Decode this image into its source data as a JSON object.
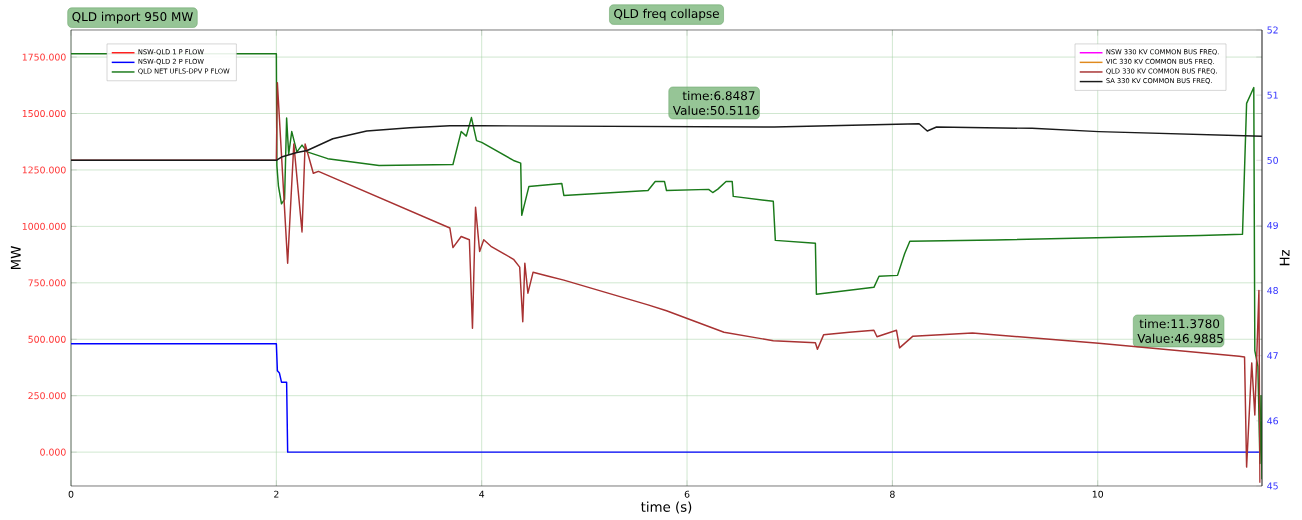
{
  "chart_data": {
    "type": "line",
    "title": "QLD freq collapse",
    "xlabel": "time (s)",
    "ylabel": "MW",
    "y2label": "Hz",
    "xlim": [
      0,
      11.6
    ],
    "xticks": [
      0,
      2,
      4,
      6,
      8,
      10
    ],
    "ylim": [
      -150,
      1870
    ],
    "yticks": [
      {
        "value": 0,
        "label": "0.000"
      },
      {
        "value": 250,
        "label": "250.000"
      },
      {
        "value": 500,
        "label": "500.000"
      },
      {
        "value": 750,
        "label": "750.000"
      },
      {
        "value": 1000,
        "label": "1000.000"
      },
      {
        "value": 1250,
        "label": "1250.000"
      },
      {
        "value": 1500,
        "label": "1500.000"
      },
      {
        "value": 1750,
        "label": "1750.000"
      }
    ],
    "y2lim": [
      45,
      52
    ],
    "y2ticks": [
      45,
      46,
      47,
      48,
      49,
      50,
      51,
      52
    ],
    "grid": true,
    "legend": "top left",
    "annotations": [
      "QLD import 950 MW",
      "time:6.8487 Value:50.5116",
      "time:11.3780 Value:46.9885"
    ],
    "series": [
      {
        "name": "NSW-QLD 1 P FLOW",
        "color": "#ff2020",
        "values": [
          null,
          null
        ]
      },
      {
        "name": "NSW-QLD 2 P FLOW",
        "color": "#0000ff",
        "x": [
          0,
          2.0,
          2.01,
          2.03,
          2.05,
          2.1,
          2.11,
          11.57
        ],
        "values": [
          480,
          480,
          360,
          350,
          310,
          310,
          0,
          0
        ]
      },
      {
        "name": "QLD NET UFLS-DPV P FLOW",
        "color": "#1a7a1a",
        "x": [
          0,
          2.0,
          2.005,
          2.02,
          2.05,
          2.08,
          2.1,
          2.12,
          2.15,
          2.2,
          2.25,
          2.3,
          2.5,
          3.0,
          3.72,
          3.8,
          3.85,
          3.9,
          3.95,
          4.0,
          4.31,
          4.38,
          4.39,
          4.46,
          4.78,
          4.8,
          5.62,
          5.69,
          5.78,
          5.8,
          6.21,
          6.25,
          6.3,
          6.38,
          6.44,
          6.45,
          6.84,
          6.86,
          7.25,
          7.26,
          7.58,
          7.82,
          7.87,
          8.05,
          8.12,
          8.17,
          9.0,
          10.0,
          11.0,
          11.41,
          11.45,
          11.52,
          11.53,
          11.56,
          11.58,
          11.59,
          11.6
        ],
        "values": [
          1765,
          1765,
          1270,
          1180,
          1100,
          1120,
          1480,
          1320,
          1420,
          1330,
          1360,
          1330,
          1300,
          1270,
          1274,
          1420,
          1400,
          1482,
          1380,
          1372,
          1292,
          1280,
          1049,
          1177,
          1190,
          1137,
          1159,
          1199,
          1199,
          1159,
          1164,
          1150,
          1165,
          1199,
          1199,
          1133,
          1111,
          938,
          925,
          699,
          717,
          730,
          779,
          783,
          880,
          934,
          940,
          950,
          960,
          965,
          1545,
          1615,
          450,
          380,
          -50,
          250,
          -120
        ]
      },
      {
        "name": "NSW 330 KV COMMON BUS FREQ.",
        "color": "#ff00ff",
        "axis": "y2",
        "values": [
          null,
          null
        ]
      },
      {
        "name": "VIC 330 KV COMMON BUS FREQ.",
        "color": "#e08a1e",
        "axis": "y2",
        "values": [
          null,
          null
        ]
      },
      {
        "name": "QLD 330 KV COMMON BUS FREQ.",
        "color": "#a83232",
        "axis": "y2",
        "x": [
          0,
          2.0,
          2.01,
          2.11,
          2.17,
          2.25,
          2.28,
          2.36,
          2.41,
          3.69,
          3.72,
          3.8,
          3.88,
          3.91,
          3.94,
          3.98,
          4.02,
          4.09,
          4.31,
          4.37,
          4.4,
          4.42,
          4.45,
          4.5,
          4.65,
          4.8,
          5.62,
          5.8,
          6.36,
          6.84,
          7.25,
          7.27,
          7.33,
          7.58,
          7.82,
          7.85,
          8.04,
          8.07,
          8.2,
          8.78,
          10.01,
          11.378,
          11.43,
          11.45,
          11.5,
          11.53,
          11.57,
          11.58
        ],
        "values": [
          50.0,
          50.0,
          51.19,
          48.42,
          50.25,
          48.9,
          50.25,
          49.8,
          49.83,
          48.96,
          48.66,
          48.83,
          48.78,
          47.42,
          49.28,
          48.6,
          48.78,
          48.68,
          48.48,
          48.36,
          47.52,
          48.42,
          47.96,
          48.28,
          48.22,
          48.16,
          47.78,
          47.69,
          47.36,
          47.23,
          47.2,
          47.1,
          47.32,
          47.36,
          47.39,
          47.29,
          47.39,
          47.12,
          47.3,
          47.35,
          47.19,
          46.99,
          46.98,
          45.29,
          46.89,
          46.09,
          48.0,
          45.05
        ]
      },
      {
        "name": "SA 330 KV COMMON BUS FREQ.",
        "color": "#1a1a1a",
        "axis": "y2",
        "x": [
          0,
          2.0,
          2.05,
          2.2,
          2.3,
          2.55,
          2.88,
          3.3,
          3.69,
          4.0,
          6.8487,
          8.26,
          8.34,
          8.43,
          9.36,
          10.01,
          11.6
        ],
        "values": [
          50.0,
          50.0,
          50.05,
          50.12,
          50.15,
          50.33,
          50.45,
          50.5,
          50.53,
          50.53,
          50.51,
          50.56,
          50.45,
          50.51,
          50.49,
          50.44,
          50.37
        ]
      }
    ]
  }
}
